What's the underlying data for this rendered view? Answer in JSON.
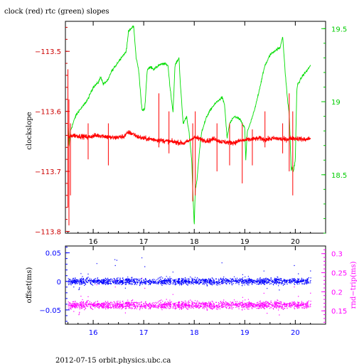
{
  "page": {
    "title": "clock (red) rtc (green) slopes",
    "footer": "2012-07-15  orbit.physics.ubc.ca"
  },
  "chart_data": [
    {
      "type": "line",
      "title": "clock (red) rtc (green) slopes",
      "xlabel": "",
      "xlim": [
        15.45,
        20.6
      ],
      "x_ticks": [
        16,
        17,
        18,
        19,
        20
      ],
      "ylabel": "clockslope",
      "ylim": [
        -113.803,
        -113.45
      ],
      "y_ticks": [
        -113.5,
        -113.6,
        -113.7,
        -113.8
      ],
      "y_tick_labels": [
        "−113.5",
        "−113.6",
        "−113.7",
        "−113.8"
      ],
      "y2lim": [
        18.1,
        19.55
      ],
      "y2_ticks": [
        19.5,
        19,
        18.5
      ],
      "y2_tick_labels": [
        "19.5",
        "19",
        "18.5"
      ],
      "colors": {
        "clock": "#ff0000",
        "rtc": "#00dd00",
        "axis_left": "#cc0000",
        "axis_right": "#00cc00"
      },
      "series": [
        {
          "axis": "right",
          "color": "#00dd00",
          "x": [
            15.5,
            15.52,
            15.55,
            15.6,
            15.65,
            15.7,
            15.8,
            15.9,
            16.0,
            16.1,
            16.15,
            16.2,
            16.3,
            16.35,
            16.45,
            16.55,
            16.65,
            16.7,
            16.75,
            16.8,
            16.85,
            16.9,
            16.95,
            16.97,
            17.02,
            17.07,
            17.15,
            17.2,
            17.3,
            17.4,
            17.48,
            17.52,
            17.58,
            17.62,
            17.7,
            17.72,
            17.78,
            17.85,
            17.9,
            17.95,
            17.97,
            18.0,
            18.02,
            18.05,
            18.1,
            18.15,
            18.25,
            18.35,
            18.45,
            18.55,
            18.6,
            18.65,
            18.7,
            18.8,
            18.9,
            19.0,
            19.02,
            19.05,
            19.1,
            19.2,
            19.3,
            19.4,
            19.45,
            19.5,
            19.6,
            19.7,
            19.75,
            19.8,
            19.85,
            19.88,
            19.9,
            19.92,
            19.94,
            19.96,
            20.0,
            20.03,
            20.05,
            20.1,
            20.15,
            20.2,
            20.25,
            20.3
          ],
          "values": [
            18.82,
            18.68,
            18.8,
            18.85,
            18.9,
            18.93,
            18.97,
            19.02,
            19.1,
            19.13,
            19.17,
            19.12,
            19.15,
            19.2,
            19.25,
            19.3,
            19.34,
            19.48,
            19.5,
            19.52,
            19.3,
            19.22,
            19.0,
            18.94,
            18.95,
            19.22,
            19.24,
            19.22,
            19.25,
            19.26,
            19.25,
            19.1,
            18.93,
            19.25,
            19.3,
            19.15,
            18.85,
            18.9,
            18.78,
            18.6,
            18.4,
            18.15,
            18.4,
            18.45,
            18.65,
            18.8,
            18.9,
            18.96,
            19.0,
            19.03,
            18.98,
            18.75,
            18.85,
            18.9,
            18.88,
            18.82,
            18.6,
            18.8,
            18.84,
            18.95,
            19.1,
            19.25,
            19.28,
            19.32,
            19.35,
            19.37,
            19.45,
            19.2,
            19.0,
            18.92,
            18.72,
            18.53,
            18.55,
            18.52,
            18.6,
            19.08,
            19.12,
            19.15,
            19.18,
            19.2,
            19.22,
            19.25
          ]
        },
        {
          "axis": "left",
          "color": "#ff0000",
          "x": [
            15.5,
            15.6,
            15.7,
            15.8,
            15.9,
            16.0,
            16.1,
            16.2,
            16.3,
            16.4,
            16.5,
            16.6,
            16.7,
            16.8,
            16.9,
            17.0,
            17.1,
            17.2,
            17.3,
            17.4,
            17.5,
            17.6,
            17.7,
            17.8,
            17.9,
            18.0,
            18.1,
            18.2,
            18.3,
            18.4,
            18.5,
            18.6,
            18.7,
            18.8,
            18.9,
            19.0,
            19.1,
            19.2,
            19.3,
            19.4,
            19.5,
            19.6,
            19.7,
            19.8,
            19.9,
            20.0,
            20.1,
            20.2,
            20.3
          ],
          "values": [
            -113.643,
            -113.64,
            -113.641,
            -113.642,
            -113.643,
            -113.641,
            -113.64,
            -113.641,
            -113.643,
            -113.644,
            -113.643,
            -113.642,
            -113.635,
            -113.638,
            -113.643,
            -113.645,
            -113.646,
            -113.647,
            -113.648,
            -113.649,
            -113.65,
            -113.651,
            -113.652,
            -113.653,
            -113.649,
            -113.643,
            -113.646,
            -113.648,
            -113.649,
            -113.645,
            -113.65,
            -113.651,
            -113.652,
            -113.652,
            -113.649,
            -113.648,
            -113.647,
            -113.646,
            -113.645,
            -113.647,
            -113.646,
            -113.645,
            -113.646,
            -113.647,
            -113.645,
            -113.645,
            -113.646,
            -113.647,
            -113.645
          ],
          "spikes": [
            {
              "x": 15.5,
              "low": -113.76,
              "high": -113.53
            },
            {
              "x": 15.52,
              "low": -113.79,
              "high": -113.58
            },
            {
              "x": 15.55,
              "low": -113.74,
              "high": -113.62
            },
            {
              "x": 15.9,
              "low": -113.68,
              "high": -113.62
            },
            {
              "x": 16.3,
              "low": -113.69,
              "high": -113.62
            },
            {
              "x": 17.3,
              "low": -113.66,
              "high": -113.57
            },
            {
              "x": 17.5,
              "low": -113.67,
              "high": -113.6
            },
            {
              "x": 17.97,
              "low": -113.75,
              "high": -113.62
            },
            {
              "x": 18.02,
              "low": -113.74,
              "high": -113.6
            },
            {
              "x": 18.45,
              "low": -113.7,
              "high": -113.62
            },
            {
              "x": 18.7,
              "low": -113.69,
              "high": -113.62
            },
            {
              "x": 18.95,
              "low": -113.72,
              "high": -113.62
            },
            {
              "x": 19.15,
              "low": -113.69,
              "high": -113.63
            },
            {
              "x": 19.4,
              "low": -113.66,
              "high": -113.6
            },
            {
              "x": 19.75,
              "low": -113.67,
              "high": -113.62
            },
            {
              "x": 19.88,
              "low": -113.7,
              "high": -113.57
            },
            {
              "x": 19.95,
              "low": -113.74,
              "high": -113.6
            }
          ]
        }
      ]
    },
    {
      "type": "scatter",
      "xlabel": "",
      "xlim": [
        15.45,
        20.6
      ],
      "x_ticks": [
        16,
        17,
        18,
        19,
        20
      ],
      "ylabel": "offset(ms)",
      "ylim": [
        -0.075,
        0.062
      ],
      "y_ticks": [
        0.05,
        0,
        -0.05
      ],
      "y_tick_labels": [
        "0.05",
        "0",
        "−0.05"
      ],
      "y2label": "rnd−trip(ms)",
      "y2lim": [
        0.115,
        0.32
      ],
      "y2_ticks": [
        0.3,
        0.25,
        0.2,
        0.15
      ],
      "y2_tick_labels": [
        "0.3",
        "0.25",
        "0.2",
        "0.15"
      ],
      "colors": {
        "offset": "#0000ff",
        "rndtrip": "#ff00ff"
      },
      "series": [
        {
          "axis": "left",
          "color": "#0000ff",
          "x_range": [
            15.5,
            20.3
          ],
          "center": 0.0,
          "spread": 0.007
        },
        {
          "axis": "right",
          "color": "#ff00ff",
          "x_range": [
            15.5,
            20.3
          ],
          "center": 0.165,
          "spread": 0.012
        }
      ]
    }
  ]
}
